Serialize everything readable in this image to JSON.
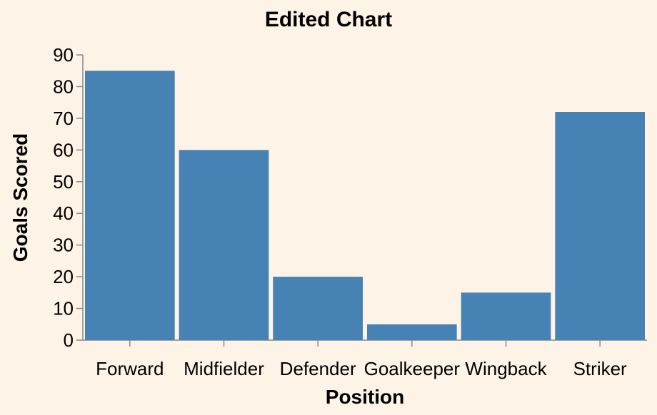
{
  "chart_data": {
    "type": "bar",
    "title": "Edited Chart",
    "xlabel": "Position",
    "ylabel": "Goals Scored",
    "categories": [
      "Forward",
      "Midfielder",
      "Defender",
      "Goalkeeper",
      "Wingback",
      "Striker"
    ],
    "values": [
      85,
      60,
      20,
      5,
      15,
      72
    ],
    "ylim": [
      0,
      90
    ],
    "yticks": [
      0,
      10,
      20,
      30,
      40,
      50,
      60,
      70,
      80,
      90
    ],
    "grid": false,
    "bar_color": "#4682b4",
    "background_color": "#fdf3e6"
  }
}
